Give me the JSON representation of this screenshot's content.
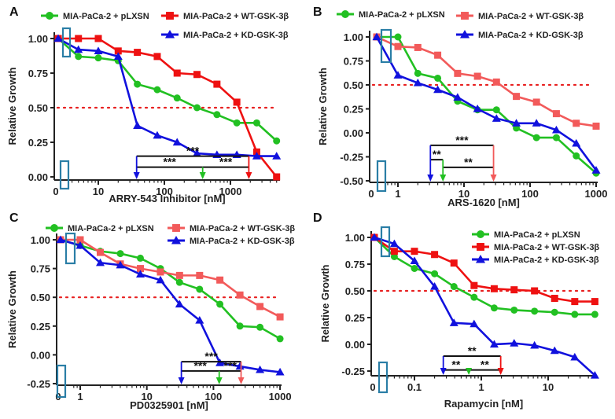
{
  "chart_data": [
    {
      "panel": "A",
      "type": "line",
      "xscale": "log",
      "xlabel": "ARRY-543 Inhibitor [nM]",
      "ylabel": "Relative Growth",
      "x_ticks": [
        "0",
        "10",
        "100",
        "1000"
      ],
      "x_tick_values": [
        0,
        10,
        100,
        1000
      ],
      "y_ticks": [
        "0.00",
        "0.25",
        "0.50",
        "0.75",
        "1.00"
      ],
      "y_tick_values": [
        0,
        0.25,
        0.5,
        0.75,
        1.0
      ],
      "ylim": [
        0,
        1.0
      ],
      "reference_line": 0.5,
      "legend": "top",
      "x": [
        0,
        5,
        10,
        20,
        39,
        78,
        156,
        312,
        625,
        1250,
        2500,
        5000
      ],
      "series": [
        {
          "name": "MIA-PaCa-2 + pLXSN",
          "color": "#22c022",
          "marker": "circle",
          "values": [
            1.0,
            0.87,
            0.86,
            0.84,
            0.67,
            0.63,
            0.57,
            0.5,
            0.45,
            0.39,
            0.39,
            0.26
          ]
        },
        {
          "name": "MIA-PaCa-2 + WT-GSK-3β",
          "color": "#ee1111",
          "marker": "square",
          "values": [
            1.0,
            1.0,
            1.0,
            0.91,
            0.9,
            0.87,
            0.75,
            0.74,
            0.67,
            0.54,
            0.18,
            0.0
          ]
        },
        {
          "name": "MIA-PaCa-2 + KD-GSK-3β",
          "color": "#1111dd",
          "marker": "triangle",
          "values": [
            1.0,
            0.92,
            0.91,
            0.87,
            0.37,
            0.3,
            0.25,
            0.17,
            0.16,
            0.16,
            0.15,
            0.15
          ]
        }
      ],
      "ic50_arrows": [
        {
          "series": 2,
          "x": 38
        },
        {
          "series": 0,
          "x": 380
        },
        {
          "series": 1,
          "x": 1900
        }
      ],
      "significance": [
        {
          "from": 2,
          "to": 1,
          "label": "***"
        },
        {
          "from": 2,
          "to": 0,
          "label": "***"
        },
        {
          "from": 0,
          "to": 1,
          "label": "***"
        }
      ]
    },
    {
      "panel": "B",
      "type": "line",
      "xscale": "log",
      "xlabel": "ARS-1620 [nM]",
      "ylabel": "Relative Growth",
      "x_ticks": [
        "0",
        "1",
        "10",
        "100",
        "1000"
      ],
      "x_tick_values": [
        0,
        1,
        10,
        100,
        1000
      ],
      "y_ticks": [
        "-0.50",
        "-0.25",
        "0.00",
        "0.25",
        "0.50",
        "0.75",
        "1.00"
      ],
      "y_tick_values": [
        -0.5,
        -0.25,
        0,
        0.25,
        0.5,
        0.75,
        1.0
      ],
      "ylim": [
        -0.5,
        1.0
      ],
      "reference_line": 0.5,
      "legend": "top",
      "x": [
        0,
        1,
        2,
        4,
        8,
        16,
        31,
        62,
        125,
        250,
        500,
        1000
      ],
      "series": [
        {
          "name": "MIA-PaCa-2 + pLXSN",
          "color": "#22c022",
          "marker": "circle",
          "values": [
            1.0,
            1.0,
            0.62,
            0.57,
            0.33,
            0.24,
            0.24,
            0.05,
            -0.05,
            -0.05,
            -0.24,
            -0.42
          ]
        },
        {
          "name": "MIA-PaCa-2 + WT-GSK-3β",
          "color": "#f25a5a",
          "marker": "square",
          "values": [
            1.0,
            0.9,
            0.89,
            0.81,
            0.62,
            0.59,
            0.53,
            0.38,
            0.32,
            0.2,
            0.1,
            0.07
          ]
        },
        {
          "name": "MIA-PaCa-2 + KD-GSK-3β",
          "color": "#1111dd",
          "marker": "triangle",
          "values": [
            1.0,
            0.6,
            0.52,
            0.45,
            0.37,
            0.25,
            0.15,
            0.1,
            0.1,
            0.03,
            -0.11,
            -0.39
          ]
        }
      ],
      "ic50_arrows": [
        {
          "series": 2,
          "x": 3.1
        },
        {
          "series": 0,
          "x": 4.8
        },
        {
          "series": 1,
          "x": 28
        }
      ],
      "significance": [
        {
          "from": 2,
          "to": 1,
          "label": "***"
        },
        {
          "from": 2,
          "to": 0,
          "label": "**"
        },
        {
          "from": 0,
          "to": 1,
          "label": "**"
        }
      ]
    },
    {
      "panel": "C",
      "type": "line",
      "xscale": "log",
      "xlabel": "PD0325901 [nM]",
      "ylabel": "Relative Growth",
      "x_ticks": [
        "0",
        "1",
        "10",
        "100",
        "1000"
      ],
      "x_tick_values": [
        0,
        1,
        10,
        100,
        1000
      ],
      "y_ticks": [
        "-0.25",
        "0.00",
        "0.25",
        "0.50",
        "0.75",
        "1.00"
      ],
      "y_tick_values": [
        -0.25,
        0,
        0.25,
        0.5,
        0.75,
        1.0
      ],
      "ylim": [
        -0.25,
        1.0
      ],
      "reference_line": 0.5,
      "legend": "top",
      "x": [
        0,
        1,
        2,
        4,
        8,
        16,
        31,
        62,
        125,
        250,
        500,
        1000
      ],
      "series": [
        {
          "name": "MIA-PaCa-2 + pLXSN",
          "color": "#22c022",
          "marker": "circle",
          "values": [
            1.0,
            0.95,
            0.9,
            0.88,
            0.84,
            0.75,
            0.63,
            0.57,
            0.44,
            0.25,
            0.24,
            0.14
          ]
        },
        {
          "name": "MIA-PaCa-2 + WT-GSK-3β",
          "color": "#f25a5a",
          "marker": "square",
          "values": [
            1.0,
            1.0,
            0.89,
            0.79,
            0.75,
            0.72,
            0.69,
            0.69,
            0.65,
            0.52,
            0.42,
            0.33
          ]
        },
        {
          "name": "MIA-PaCa-2 + KD-GSK-3β",
          "color": "#1111dd",
          "marker": "triangle",
          "values": [
            1.0,
            0.95,
            0.8,
            0.78,
            0.7,
            0.65,
            0.44,
            0.3,
            -0.07,
            -0.1,
            -0.13,
            -0.15
          ]
        }
      ],
      "ic50_arrows": [
        {
          "series": 2,
          "x": 33
        },
        {
          "series": 0,
          "x": 122
        },
        {
          "series": 1,
          "x": 260
        }
      ],
      "significance": [
        {
          "from": 2,
          "to": 1,
          "label": "***"
        },
        {
          "from": 2,
          "to": 0,
          "label": "***"
        },
        {
          "from": 0,
          "to": 1,
          "label": "***"
        }
      ]
    },
    {
      "panel": "D",
      "type": "line",
      "xscale": "log",
      "xlabel": "Rapamycin [nM]",
      "ylabel": "Relative Growth",
      "x_ticks": [
        "0",
        "0.1",
        "1",
        "10"
      ],
      "x_tick_values": [
        0,
        0.1,
        1,
        10
      ],
      "y_ticks": [
        "-0.25",
        "0.00",
        "0.25",
        "0.50",
        "0.75",
        "1.00"
      ],
      "y_tick_values": [
        -0.25,
        0,
        0.25,
        0.5,
        0.75,
        1.0
      ],
      "ylim": [
        -0.25,
        1.0
      ],
      "reference_line": 0.5,
      "legend": "top-right",
      "x": [
        0,
        0.05,
        0.1,
        0.2,
        0.39,
        0.78,
        1.56,
        3.1,
        6.25,
        12.5,
        25,
        50
      ],
      "series": [
        {
          "name": "MIA-PaCa-2 + pLXSN",
          "color": "#22c022",
          "marker": "circle",
          "values": [
            1.0,
            0.82,
            0.71,
            0.66,
            0.54,
            0.44,
            0.34,
            0.32,
            0.31,
            0.3,
            0.28,
            0.28
          ]
        },
        {
          "name": "MIA-PaCa-2 + WT-GSK-3β",
          "color": "#ee1111",
          "marker": "square",
          "values": [
            1.0,
            0.87,
            0.87,
            0.84,
            0.76,
            0.55,
            0.52,
            0.51,
            0.5,
            0.43,
            0.4,
            0.4
          ]
        },
        {
          "name": "MIA-PaCa-2 + KD-GSK-3β",
          "color": "#1111dd",
          "marker": "triangle",
          "values": [
            1.0,
            0.94,
            0.78,
            0.54,
            0.2,
            0.19,
            0.0,
            0.01,
            -0.01,
            -0.06,
            -0.12,
            -0.29
          ]
        }
      ],
      "ic50_arrows": [
        {
          "series": 2,
          "x": 0.27
        },
        {
          "series": 0,
          "x": 0.65
        },
        {
          "series": 1,
          "x": 1.95
        }
      ],
      "significance": [
        {
          "from": 2,
          "to": 1,
          "label": "**"
        },
        {
          "from": 2,
          "to": 0,
          "label": "**"
        },
        {
          "from": 0,
          "to": 1,
          "label": "**"
        }
      ]
    }
  ]
}
